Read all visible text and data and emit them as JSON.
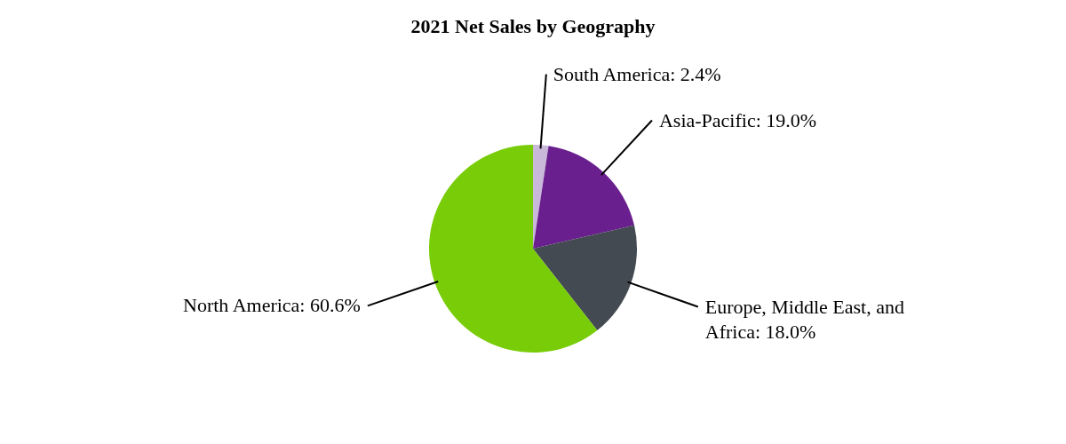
{
  "chart_data": {
    "type": "pie",
    "title": "2021 Net Sales by Geography",
    "categories": [
      "South America",
      "Asia-Pacific",
      "Europe, Middle East, and Africa",
      "North America"
    ],
    "values": [
      2.4,
      19.0,
      18.0,
      60.6
    ],
    "colors": [
      "#c9b8d9",
      "#6a1f8e",
      "#434a52",
      "#78cc08"
    ],
    "value_labels": [
      "2.4%",
      "19.0%",
      "18.0%",
      "60.6%"
    ]
  }
}
